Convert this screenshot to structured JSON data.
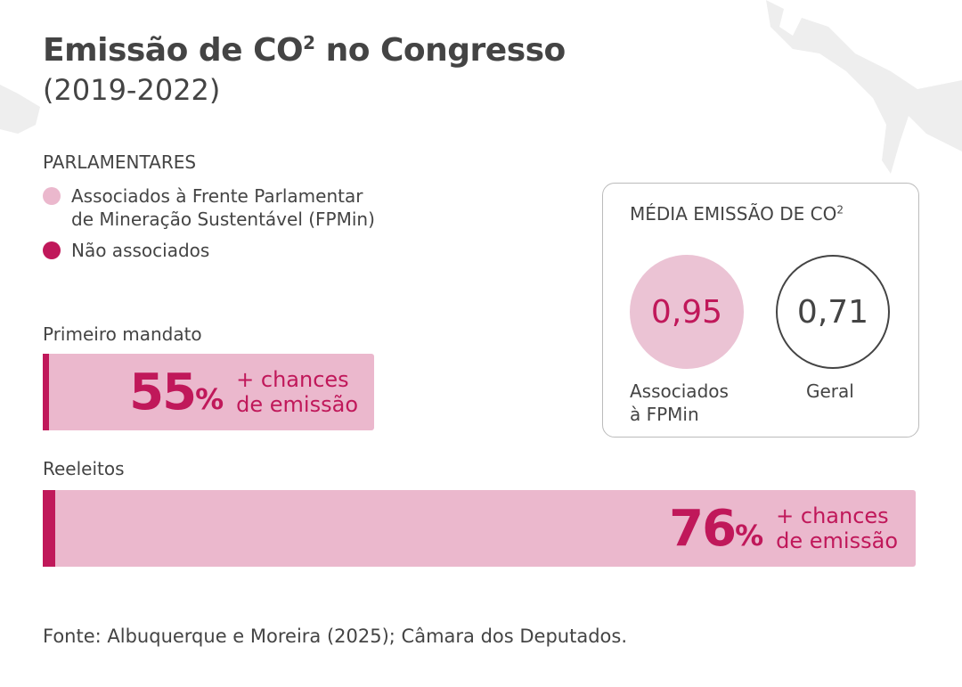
{
  "header": {
    "title": "Emissão de CO",
    "title_sup": "2",
    "title_rest": "no Congresso",
    "subtitle": "(2019-2022)"
  },
  "legend": {
    "title": "PARLAMENTARES",
    "items": [
      {
        "label_line1": "Associados à Frente Parlamentar",
        "label_line2": "de Mineração Sustentável (FPMin)",
        "color": "#EBB8CD"
      },
      {
        "label_line1": "Não associados",
        "label_line2": "",
        "color": "#C0185A"
      }
    ]
  },
  "chart_data": {
    "type": "bar",
    "categories": [
      "Primeiro mandato",
      "Reeleitos"
    ],
    "values": [
      55,
      76
    ],
    "unit": "%",
    "value_text": "+ chances de emissão",
    "bars": [
      {
        "label": "Primeiro mandato",
        "value": "55",
        "pct": "%",
        "text1": "+ chances",
        "text2": "de emissão"
      },
      {
        "label": "Reeleitos",
        "value": "76",
        "pct": "%",
        "text1": "+ chances",
        "text2": "de emissão"
      }
    ],
    "colors": {
      "bar": "#EBB8CD",
      "accent": "#C0185A"
    }
  },
  "card": {
    "title": "MÉDIA EMISSÃO DE CO",
    "title_sup": "2",
    "items": [
      {
        "value": "0,95",
        "label_line1": "Associados",
        "label_line2": "à FPMin"
      },
      {
        "value": "0,71",
        "label_line1": "Geral",
        "label_line2": ""
      }
    ]
  },
  "source": "Fonte: Albuquerque e Moreira (2025); Câmara dos Deputados."
}
